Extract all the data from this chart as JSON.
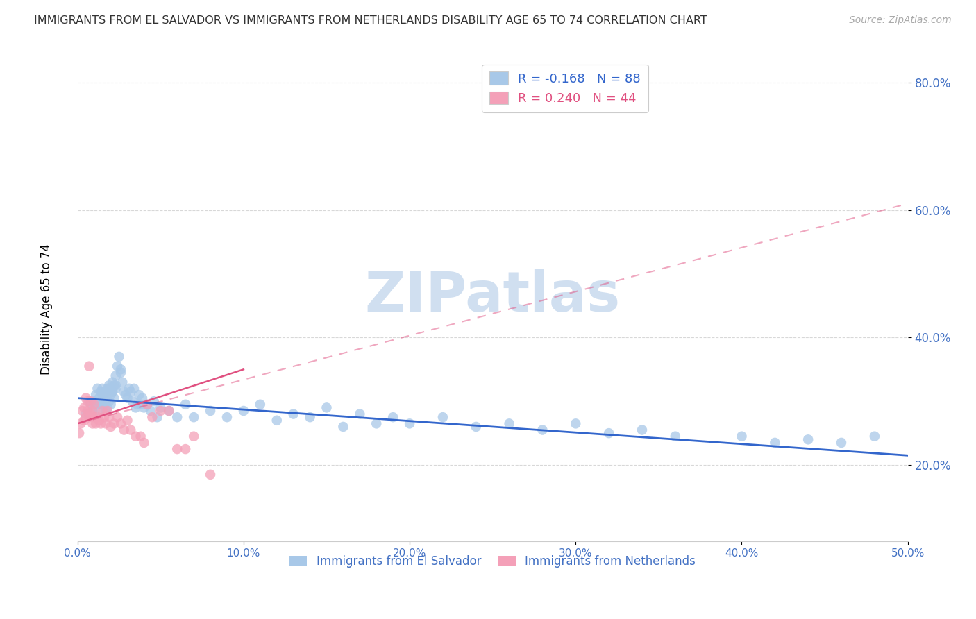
{
  "title": "IMMIGRANTS FROM EL SALVADOR VS IMMIGRANTS FROM NETHERLANDS DISABILITY AGE 65 TO 74 CORRELATION CHART",
  "source": "Source: ZipAtlas.com",
  "ylabel": "Disability Age 65 to 74",
  "legend_labels": [
    "Immigrants from El Salvador",
    "Immigrants from Netherlands"
  ],
  "r_blue": -0.168,
  "n_blue": 88,
  "r_pink": 0.24,
  "n_pink": 44,
  "xlim": [
    0.0,
    0.5
  ],
  "ylim": [
    0.08,
    0.85
  ],
  "yticks": [
    0.2,
    0.4,
    0.6,
    0.8
  ],
  "ytick_labels": [
    "20.0%",
    "40.0%",
    "60.0%",
    "80.0%"
  ],
  "xticks": [
    0.0,
    0.1,
    0.2,
    0.3,
    0.4,
    0.5
  ],
  "xtick_labels": [
    "0.0%",
    "10.0%",
    "20.0%",
    "30.0%",
    "40.0%",
    "50.0%"
  ],
  "blue_color": "#a8c8e8",
  "pink_color": "#f4a0b8",
  "blue_line_color": "#3366cc",
  "pink_line_color": "#e05080",
  "title_color": "#333333",
  "axis_color": "#4472C4",
  "watermark": "ZIPatlas",
  "watermark_color": "#d0dff0",
  "blue_scatter_x": [
    0.005,
    0.007,
    0.008,
    0.009,
    0.01,
    0.011,
    0.012,
    0.012,
    0.013,
    0.013,
    0.014,
    0.014,
    0.015,
    0.015,
    0.016,
    0.016,
    0.017,
    0.017,
    0.018,
    0.018,
    0.019,
    0.019,
    0.02,
    0.02,
    0.021,
    0.021,
    0.022,
    0.022,
    0.023,
    0.023,
    0.024,
    0.025,
    0.026,
    0.027,
    0.028,
    0.029,
    0.03,
    0.031,
    0.032,
    0.033,
    0.034,
    0.035,
    0.036,
    0.037,
    0.038,
    0.039,
    0.04,
    0.042,
    0.044,
    0.046,
    0.048,
    0.05,
    0.055,
    0.06,
    0.065,
    0.07,
    0.08,
    0.09,
    0.1,
    0.11,
    0.12,
    0.13,
    0.14,
    0.15,
    0.16,
    0.17,
    0.18,
    0.19,
    0.2,
    0.22,
    0.24,
    0.26,
    0.28,
    0.3,
    0.32,
    0.34,
    0.36,
    0.4,
    0.42,
    0.44,
    0.46,
    0.48,
    0.015,
    0.017,
    0.019,
    0.021,
    0.023,
    0.026
  ],
  "blue_scatter_y": [
    0.28,
    0.3,
    0.295,
    0.285,
    0.3,
    0.31,
    0.32,
    0.295,
    0.305,
    0.285,
    0.295,
    0.315,
    0.3,
    0.32,
    0.295,
    0.31,
    0.285,
    0.315,
    0.29,
    0.32,
    0.3,
    0.325,
    0.31,
    0.295,
    0.315,
    0.33,
    0.305,
    0.325,
    0.32,
    0.34,
    0.355,
    0.37,
    0.345,
    0.33,
    0.315,
    0.31,
    0.305,
    0.32,
    0.315,
    0.3,
    0.32,
    0.29,
    0.295,
    0.31,
    0.295,
    0.305,
    0.29,
    0.295,
    0.285,
    0.3,
    0.275,
    0.29,
    0.285,
    0.275,
    0.295,
    0.275,
    0.285,
    0.275,
    0.285,
    0.295,
    0.27,
    0.28,
    0.275,
    0.29,
    0.26,
    0.28,
    0.265,
    0.275,
    0.265,
    0.275,
    0.26,
    0.265,
    0.255,
    0.265,
    0.25,
    0.255,
    0.245,
    0.245,
    0.235,
    0.24,
    0.235,
    0.245,
    0.31,
    0.3,
    0.32,
    0.315,
    0.325,
    0.35
  ],
  "pink_scatter_x": [
    0.001,
    0.002,
    0.003,
    0.004,
    0.004,
    0.005,
    0.005,
    0.006,
    0.006,
    0.007,
    0.007,
    0.008,
    0.008,
    0.009,
    0.009,
    0.01,
    0.01,
    0.011,
    0.012,
    0.013,
    0.014,
    0.015,
    0.016,
    0.017,
    0.018,
    0.019,
    0.02,
    0.022,
    0.024,
    0.026,
    0.028,
    0.03,
    0.032,
    0.035,
    0.038,
    0.04,
    0.042,
    0.045,
    0.05,
    0.055,
    0.06,
    0.065,
    0.07,
    0.08
  ],
  "pink_scatter_y": [
    0.25,
    0.265,
    0.285,
    0.29,
    0.27,
    0.305,
    0.275,
    0.285,
    0.3,
    0.355,
    0.275,
    0.28,
    0.3,
    0.265,
    0.285,
    0.275,
    0.295,
    0.265,
    0.275,
    0.27,
    0.265,
    0.285,
    0.275,
    0.265,
    0.285,
    0.275,
    0.26,
    0.265,
    0.275,
    0.265,
    0.255,
    0.27,
    0.255,
    0.245,
    0.245,
    0.235,
    0.295,
    0.275,
    0.285,
    0.285,
    0.225,
    0.225,
    0.245,
    0.185
  ],
  "blue_trend_x": [
    0.0,
    0.5
  ],
  "blue_trend_y": [
    0.305,
    0.215
  ],
  "pink_trend_x": [
    0.0,
    0.1
  ],
  "pink_trend_y": [
    0.265,
    0.35
  ],
  "pink_ext_trend_x": [
    0.0,
    0.5
  ],
  "pink_ext_trend_y": [
    0.265,
    0.61
  ]
}
